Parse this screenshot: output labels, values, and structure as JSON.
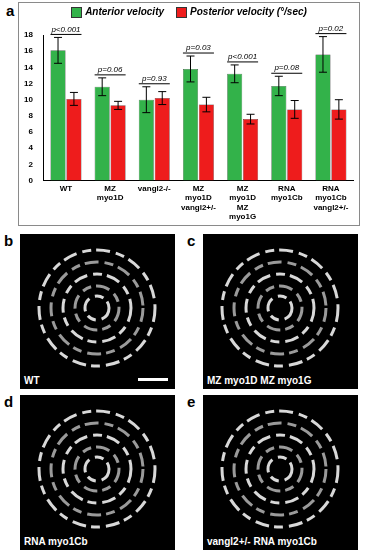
{
  "chart_data": {
    "type": "bar",
    "categories": [
      "WT",
      "MZ myo1D",
      "vangl2-/-",
      "MZ myo1D vangl2+/-",
      "MZ myo1D MZ myo1G",
      "RNA myo1Cb",
      "RNA myo1Cb vangl2+/-"
    ],
    "series": [
      {
        "name": "Anterior velocity",
        "color": "#33b24a",
        "values": [
          16.1,
          11.6,
          10.0,
          13.8,
          13.2,
          11.7,
          15.6
        ],
        "errors": [
          1.6,
          1.1,
          1.6,
          1.6,
          1.1,
          1.2,
          2.2
        ]
      },
      {
        "name": "Posterior velocity (°/sec)",
        "color": "#ee1c1c",
        "values": [
          10.1,
          9.3,
          10.2,
          9.4,
          7.6,
          8.8,
          8.8
        ],
        "errors": [
          0.8,
          0.5,
          0.8,
          0.9,
          0.6,
          1.1,
          1.2
        ]
      }
    ],
    "annotations": [
      "p<0.001",
      "p=0.06",
      "p=0.93",
      "p=0.03",
      "p<0.001",
      "p=0.08",
      "p=0.02"
    ],
    "ylim": [
      0,
      18
    ],
    "yticks": [
      0,
      2,
      4,
      6,
      8,
      10,
      12,
      14,
      16,
      18
    ],
    "grid": false,
    "legend": "top"
  },
  "panels": [
    {
      "letter": "a"
    },
    {
      "letter": "b",
      "caption": "WT"
    },
    {
      "letter": "c",
      "caption": "MZ myo1D MZ myo1G"
    },
    {
      "letter": "d",
      "caption": "RNA myo1Cb"
    },
    {
      "letter": "e",
      "caption": "vangl2+/- RNA myo1Cb"
    }
  ]
}
